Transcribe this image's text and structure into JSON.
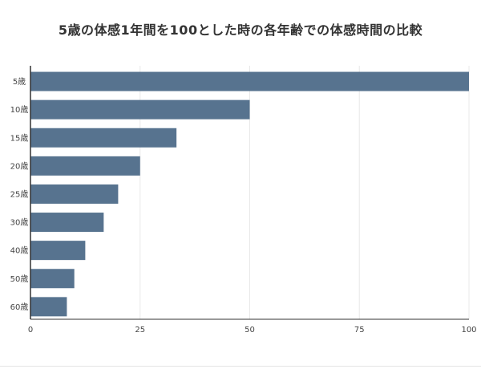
{
  "chart_data": {
    "type": "bar",
    "orientation": "horizontal",
    "title": "5歳の体感1年間を100とした時の各年齢での体感時間の比較",
    "categories": [
      "5歳",
      "10歳",
      "15歳",
      "20歳",
      "25歳",
      "30歳",
      "40歳",
      "50歳",
      "60歳"
    ],
    "values": [
      100,
      50,
      33.3,
      25,
      20,
      16.7,
      12.5,
      10,
      8.3
    ],
    "xlim": [
      0,
      100
    ],
    "xticks": [
      "0",
      "25",
      "50",
      "75",
      "100"
    ],
    "grid": true,
    "legend": "none",
    "colors": {
      "bar": "#57738f",
      "axis": "#333333",
      "grid": "#e8e8e8"
    }
  }
}
